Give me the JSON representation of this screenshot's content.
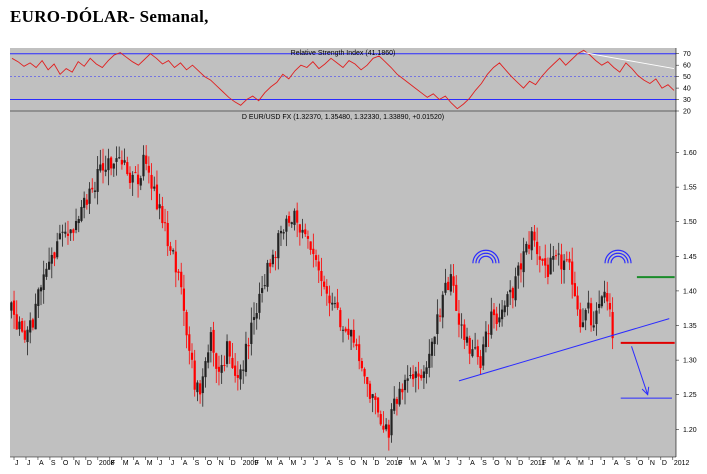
{
  "page": {
    "heading": "EURO-DÓLAR- Semanal,"
  },
  "colors": {
    "panel_bg": "#c0c0c0",
    "bull": "#222222",
    "bear": "#ff0000",
    "rsi_line": "#e02020",
    "rsi_level": "#2b2bff",
    "rsi_trend": "#ffffff",
    "trendline": "#2b2bff",
    "resistance": "#1a8c2a",
    "support": "#e00000",
    "target": "#2b2bff",
    "arc": "#2b2bff"
  },
  "chart_data": [
    {
      "type": "line",
      "title": "Relative Strength Index (41.1860)",
      "ylim": [
        20,
        75
      ],
      "yticks": [
        20,
        30,
        40,
        50,
        60,
        70
      ],
      "levels": [
        70,
        50,
        30
      ],
      "series": [
        {
          "values": [
            66,
            63,
            59,
            62,
            58,
            64,
            56,
            61,
            52,
            57,
            54,
            63,
            59,
            66,
            61,
            58,
            64,
            69,
            71,
            67,
            63,
            60,
            65,
            70,
            66,
            61,
            64,
            58,
            62,
            56,
            60,
            55,
            50,
            47,
            42,
            37,
            32,
            28,
            25,
            30,
            33,
            29,
            36,
            41,
            45,
            52,
            48,
            55,
            60,
            58,
            63,
            57,
            61,
            66,
            62,
            58,
            64,
            61,
            56,
            60,
            66,
            68,
            63,
            58,
            52,
            48,
            44,
            40,
            36,
            32,
            35,
            30,
            33,
            27,
            22,
            26,
            31,
            38,
            44,
            52,
            58,
            62,
            56,
            50,
            45,
            40,
            46,
            43,
            50,
            56,
            61,
            66,
            60,
            65,
            70,
            73,
            69,
            64,
            60,
            63,
            58,
            54,
            62,
            57,
            51,
            47,
            44,
            48,
            40,
            43,
            38
          ]
        }
      ],
      "annotations": [
        {
          "type": "trendline",
          "from": 95,
          "to": 110,
          "y": [
            71,
            57
          ]
        }
      ]
    },
    {
      "type": "candlestick",
      "title": "D EUR/USD FX (1.32370, 1.35480, 1.32330, 1.33890, +0.01520)",
      "ylim": [
        1.16,
        1.66
      ],
      "yticks": [
        1.2,
        1.25,
        1.3,
        1.35,
        1.4,
        1.45,
        1.5,
        1.55,
        1.6
      ],
      "xticks": [
        "J",
        "J",
        "A",
        "S",
        "O",
        "N",
        "D",
        "2008",
        "F",
        "M",
        "A",
        "M",
        "J",
        "J",
        "A",
        "S",
        "O",
        "N",
        "D",
        "2009",
        "F",
        "M",
        "A",
        "M",
        "J",
        "J",
        "A",
        "S",
        "O",
        "N",
        "D",
        "2010",
        "F",
        "M",
        "A",
        "M",
        "J",
        "J",
        "A",
        "S",
        "O",
        "N",
        "D",
        "2011",
        "F",
        "M",
        "A",
        "M",
        "J",
        "J",
        "A",
        "S",
        "O",
        "N",
        "D",
        "2012"
      ],
      "anchors": [
        [
          0,
          1.37
        ],
        [
          6,
          1.33
        ],
        [
          12,
          1.42
        ],
        [
          18,
          1.47
        ],
        [
          24,
          1.5
        ],
        [
          30,
          1.55
        ],
        [
          36,
          1.59
        ],
        [
          42,
          1.58
        ],
        [
          46,
          1.56
        ],
        [
          50,
          1.59
        ],
        [
          54,
          1.53
        ],
        [
          58,
          1.47
        ],
        [
          62,
          1.42
        ],
        [
          64,
          1.37
        ],
        [
          68,
          1.27
        ],
        [
          70,
          1.24
        ],
        [
          74,
          1.34
        ],
        [
          77,
          1.28
        ],
        [
          80,
          1.32
        ],
        [
          84,
          1.26
        ],
        [
          88,
          1.33
        ],
        [
          92,
          1.4
        ],
        [
          96,
          1.44
        ],
        [
          100,
          1.48
        ],
        [
          104,
          1.51
        ],
        [
          108,
          1.49
        ],
        [
          112,
          1.44
        ],
        [
          116,
          1.4
        ],
        [
          122,
          1.36
        ],
        [
          126,
          1.33
        ],
        [
          130,
          1.29
        ],
        [
          134,
          1.24
        ],
        [
          138,
          1.21
        ],
        [
          140,
          1.2
        ],
        [
          144,
          1.26
        ],
        [
          148,
          1.28
        ],
        [
          152,
          1.27
        ],
        [
          156,
          1.32
        ],
        [
          160,
          1.39
        ],
        [
          163,
          1.41
        ],
        [
          166,
          1.36
        ],
        [
          170,
          1.32
        ],
        [
          174,
          1.3
        ],
        [
          178,
          1.36
        ],
        [
          182,
          1.37
        ],
        [
          186,
          1.4
        ],
        [
          190,
          1.45
        ],
        [
          193,
          1.48
        ],
        [
          196,
          1.45
        ],
        [
          199,
          1.43
        ],
        [
          202,
          1.44
        ],
        [
          205,
          1.44
        ],
        [
          208,
          1.42
        ],
        [
          211,
          1.36
        ],
        [
          214,
          1.37
        ],
        [
          216,
          1.34
        ],
        [
          219,
          1.4
        ],
        [
          221,
          1.38
        ],
        [
          223,
          1.34
        ]
      ],
      "annotations": {
        "trendline": {
          "from": [
            166,
            1.27
          ],
          "to": [
            244,
            1.36
          ]
        },
        "resistance": {
          "level": 1.42,
          "from": 232,
          "to": 246
        },
        "support": {
          "level": 1.325,
          "from": 226,
          "to": 246
        },
        "target": {
          "level": 1.245,
          "from": 226,
          "to": 245
        },
        "arrow": {
          "from": [
            230,
            1.32
          ],
          "to": [
            236,
            1.25
          ]
        },
        "arcs": [
          {
            "x": 176,
            "y": 1.44
          },
          {
            "x": 225,
            "y": 1.44
          }
        ]
      }
    }
  ]
}
